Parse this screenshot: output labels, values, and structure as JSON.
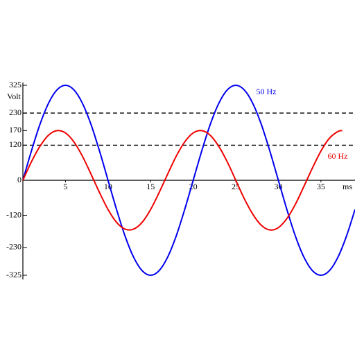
{
  "chart_data": {
    "type": "line",
    "y_label": "Volt",
    "x_label": "ms",
    "xlim": [
      0,
      39
    ],
    "xticks": [
      5,
      10,
      15,
      20,
      25,
      30,
      35
    ],
    "ylim": [
      -325,
      325
    ],
    "yticks": [
      325,
      230,
      170,
      120,
      0,
      -120,
      -230,
      -325
    ],
    "hlines": [
      230,
      120
    ],
    "series": [
      {
        "name": "50 Hz",
        "color": "#0000ee",
        "x": [
          0,
          1,
          2,
          3,
          4,
          5,
          6,
          7,
          8,
          9,
          10,
          11,
          12,
          13,
          14,
          15,
          16,
          17,
          18,
          19,
          20,
          21,
          22,
          23,
          24,
          25,
          26,
          27,
          28,
          29,
          30,
          31,
          32,
          33,
          34,
          35,
          36,
          37,
          38,
          39
        ],
        "values": [
          0,
          100,
          191,
          263,
          309,
          325,
          309,
          263,
          191,
          100,
          0,
          -100,
          -191,
          -263,
          -309,
          -325,
          -309,
          -263,
          -191,
          -100,
          0,
          100,
          191,
          263,
          309,
          325,
          309,
          263,
          191,
          100,
          0,
          -100,
          -191,
          -263,
          -309,
          -325,
          -309,
          -263,
          -191,
          -100
        ]
      },
      {
        "name": "60 Hz",
        "color": "#ee0000",
        "x": [
          0,
          1,
          2,
          3,
          4,
          5,
          6,
          7,
          8,
          9,
          10,
          11,
          12,
          13,
          14,
          15,
          16,
          17,
          18,
          19,
          20,
          21,
          22,
          23,
          24,
          25,
          26,
          27,
          28,
          29,
          30,
          31,
          32,
          33,
          34,
          35,
          36,
          37,
          37.5
        ],
        "values": [
          0,
          63,
          116,
          154,
          170,
          162,
          131,
          82,
          21,
          -42,
          -100,
          -144,
          -167,
          -167,
          -144,
          -100,
          -42,
          21,
          82,
          131,
          162,
          170,
          154,
          116,
          63,
          0,
          -63,
          -116,
          -154,
          -170,
          -162,
          -131,
          -82,
          -21,
          42,
          100,
          144,
          167,
          170
        ]
      }
    ]
  }
}
